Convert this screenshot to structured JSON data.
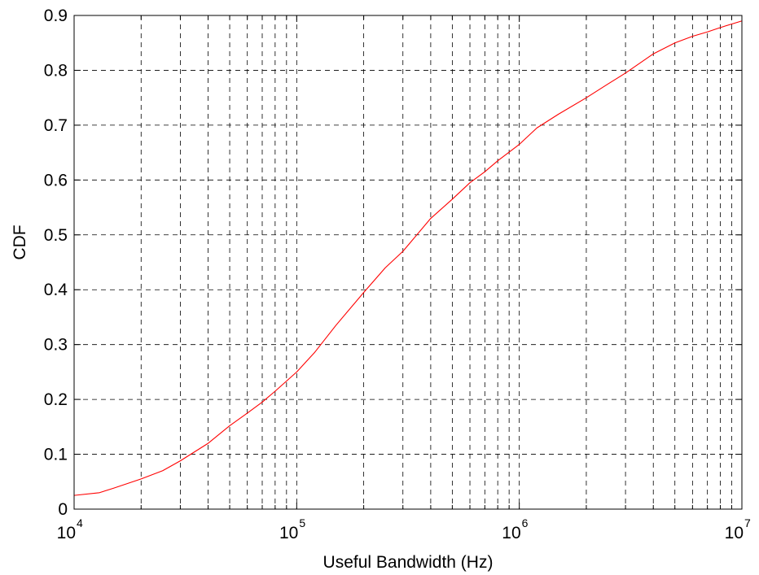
{
  "chart_data": {
    "type": "line",
    "xlabel": "Useful Bandwidth (Hz)",
    "ylabel": "CDF",
    "x_scale": "log",
    "xlim": [
      10000,
      10000000
    ],
    "ylim": [
      0,
      0.9
    ],
    "grid": true,
    "x_tick_labels": [
      {
        "base": "10",
        "exp": "4"
      },
      {
        "base": "10",
        "exp": "5"
      },
      {
        "base": "10",
        "exp": "6"
      },
      {
        "base": "10",
        "exp": "7"
      }
    ],
    "y_ticks": [
      0,
      0.1,
      0.2,
      0.3,
      0.4,
      0.5,
      0.6,
      0.7,
      0.8,
      0.9
    ],
    "y_tick_labels": [
      "0",
      "0.1",
      "0.2",
      "0.3",
      "0.4",
      "0.5",
      "0.6",
      "0.7",
      "0.8",
      "0.9"
    ],
    "series": [
      {
        "color": "#ff0000",
        "x": [
          10000,
          13000,
          15000,
          20000,
          25000,
          30000,
          40000,
          50000,
          60000,
          70000,
          80000,
          100000,
          120000,
          150000,
          200000,
          250000,
          300000,
          400000,
          500000,
          600000,
          700000,
          800000,
          1000000,
          1200000,
          1500000,
          2000000,
          2500000,
          3000000,
          4000000,
          5000000,
          6000000,
          7000000,
          8000000,
          10000000
        ],
        "y": [
          0.025,
          0.03,
          0.038,
          0.055,
          0.07,
          0.088,
          0.12,
          0.152,
          0.175,
          0.195,
          0.215,
          0.25,
          0.285,
          0.335,
          0.395,
          0.44,
          0.47,
          0.53,
          0.565,
          0.595,
          0.615,
          0.635,
          0.665,
          0.695,
          0.72,
          0.75,
          0.775,
          0.795,
          0.83,
          0.85,
          0.862,
          0.87,
          0.878,
          0.89
        ]
      }
    ]
  }
}
